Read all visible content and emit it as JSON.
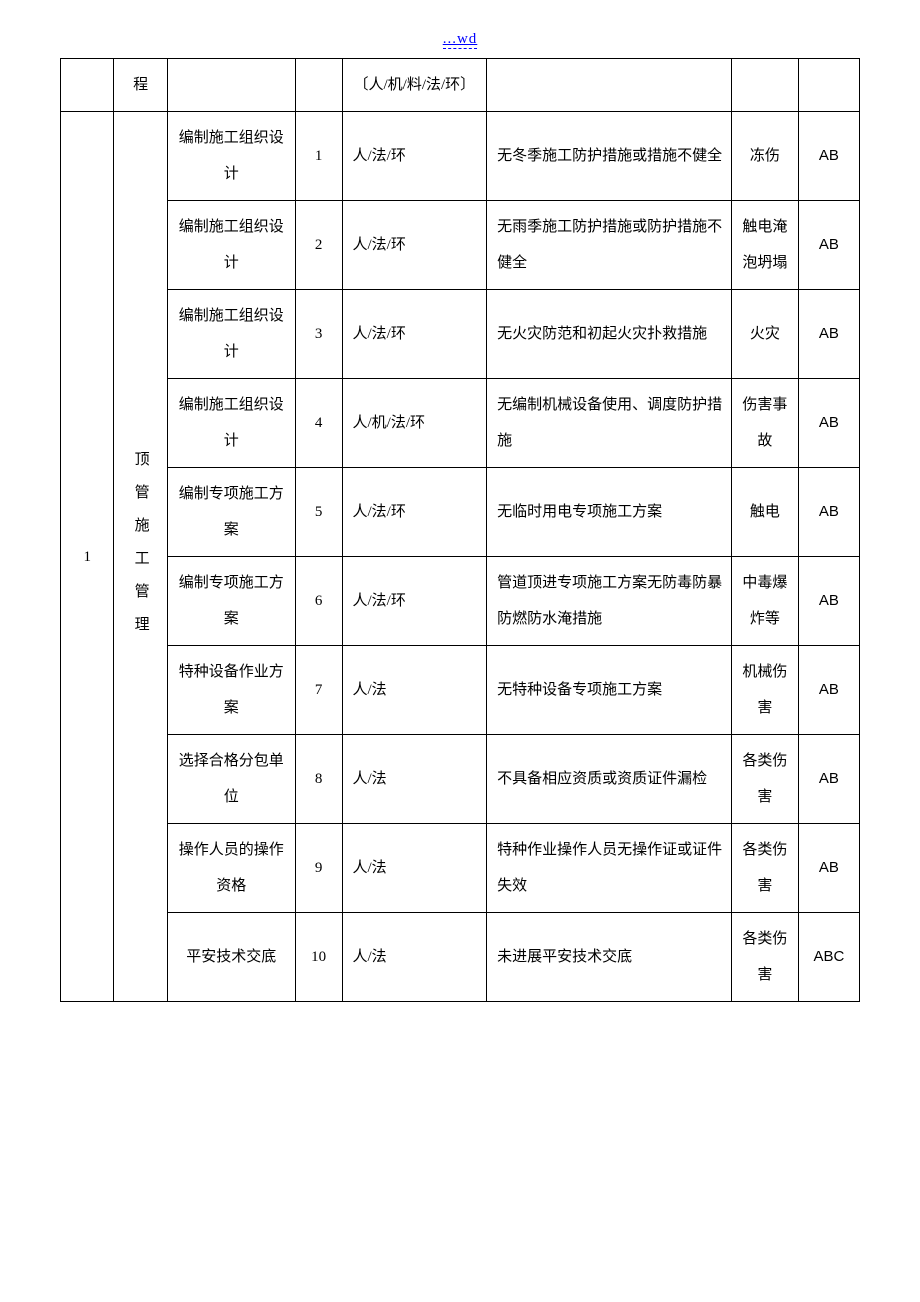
{
  "header_link": "...wd",
  "header_row": {
    "col_cat_suffix": "程",
    "factor_label": "〔人/机/料/法/环〕"
  },
  "table": {
    "sequence": "1",
    "category": "顶管施工管理",
    "rows": [
      {
        "activity": "编制施工组织设计",
        "num": "1",
        "factor": "人/法/环",
        "hazard": "无冬季施工防护措施或措施不健全",
        "accident": "冻伤",
        "level": "AB"
      },
      {
        "activity": "编制施工组织设计",
        "num": "2",
        "factor": "人/法/环",
        "hazard": "无雨季施工防护措施或防护措施不健全",
        "accident": "触电淹泡坍塌",
        "level": "AB"
      },
      {
        "activity": "编制施工组织设计",
        "num": "3",
        "factor": "人/法/环",
        "hazard": "无火灾防范和初起火灾扑救措施",
        "accident": "火灾",
        "level": "AB"
      },
      {
        "activity": "编制施工组织设计",
        "num": "4",
        "factor": "人/机/法/环",
        "hazard": "无编制机械设备使用、调度防护措施",
        "accident": "伤害事故",
        "level": "AB"
      },
      {
        "activity": "编制专项施工方案",
        "num": "5",
        "factor": "人/法/环",
        "hazard": "无临时用电专项施工方案",
        "accident": "触电",
        "level": "AB"
      },
      {
        "activity": "编制专项施工方案",
        "num": "6",
        "factor": "人/法/环",
        "hazard": "管道顶进专项施工方案无防毒防暴防燃防水淹措施",
        "accident": "中毒爆炸等",
        "level": "AB"
      },
      {
        "activity": "特种设备作业方案",
        "num": "7",
        "factor": "人/法",
        "hazard": "无特种设备专项施工方案",
        "accident": "机械伤害",
        "level": "AB"
      },
      {
        "activity": "选择合格分包单位",
        "num": "8",
        "factor": "人/法",
        "hazard": "不具备相应资质或资质证件漏检",
        "accident": "各类伤害",
        "level": "AB"
      },
      {
        "activity": "操作人员的操作资格",
        "num": "9",
        "factor": "人/法",
        "hazard": "特种作业操作人员无操作证或证件失效",
        "accident": "各类伤害",
        "level": "AB"
      },
      {
        "activity": "平安技术交底",
        "num": "10",
        "factor": "人/法",
        "hazard": "未进展平安技术交底",
        "accident": "各类伤害",
        "level": "ABC"
      }
    ]
  },
  "colors": {
    "border": "#000000",
    "text": "#000000",
    "link": "#0000ff",
    "background": "#ffffff"
  }
}
